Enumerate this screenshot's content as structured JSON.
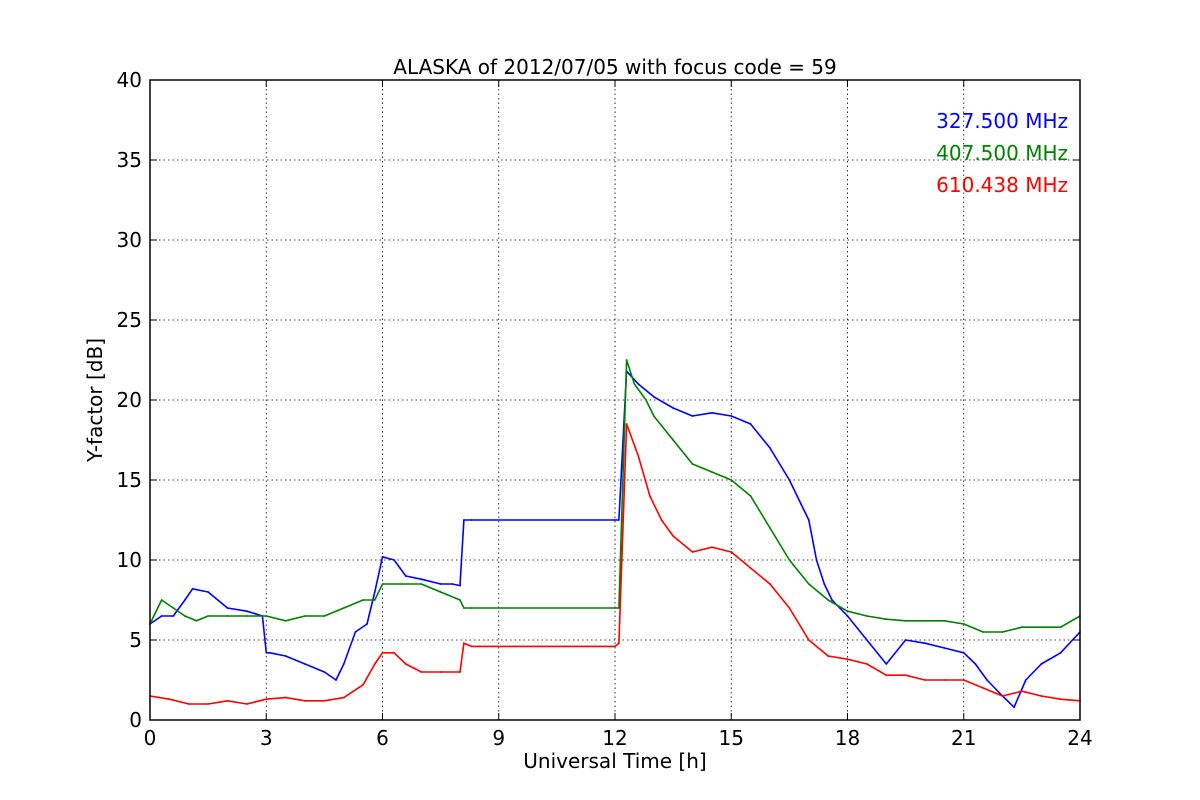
{
  "chart_data": {
    "type": "line",
    "title": "ALASKA of 2012/07/05 with focus code = 59",
    "xlabel": "Universal Time [h]",
    "ylabel": "Y-factor [dB]",
    "xlim": [
      0,
      24
    ],
    "ylim": [
      0,
      40
    ],
    "xticks": [
      0,
      3,
      6,
      9,
      12,
      15,
      18,
      21,
      24
    ],
    "yticks": [
      0,
      5,
      10,
      15,
      20,
      25,
      30,
      35,
      40
    ],
    "grid": true,
    "legend_position": "top-right",
    "series": [
      {
        "name": "327.500 MHz",
        "color": "#0000ff",
        "x": [
          0,
          0.3,
          0.6,
          0.9,
          1.1,
          1.5,
          2.0,
          2.5,
          2.9,
          3.0,
          3.1,
          3.5,
          4.0,
          4.5,
          4.8,
          5.0,
          5.3,
          5.6,
          5.8,
          6.0,
          6.3,
          6.6,
          7.0,
          7.5,
          7.8,
          8.0,
          8.1,
          8.3,
          12.0,
          12.1,
          12.3,
          12.6,
          13.0,
          13.5,
          14.0,
          14.5,
          15.0,
          15.5,
          16.0,
          16.5,
          16.8,
          17.0,
          17.2,
          17.4,
          17.6,
          17.8,
          18.0,
          18.5,
          19.0,
          19.5,
          20.0,
          20.5,
          21.0,
          21.3,
          21.6,
          22.0,
          22.3,
          22.6,
          23.0,
          23.5,
          24.0
        ],
        "y": [
          6.0,
          6.5,
          6.5,
          7.5,
          8.2,
          8.0,
          7.0,
          6.8,
          6.5,
          4.2,
          4.2,
          4.0,
          3.5,
          3.0,
          2.5,
          3.5,
          5.5,
          6.0,
          8.0,
          10.2,
          10.0,
          9.0,
          8.8,
          8.5,
          8.5,
          8.4,
          12.5,
          12.5,
          12.5,
          12.5,
          21.8,
          21.0,
          20.2,
          19.5,
          19.0,
          19.2,
          19.0,
          18.5,
          17.0,
          15.0,
          13.5,
          12.5,
          10.0,
          8.5,
          7.5,
          7.0,
          6.5,
          5.0,
          3.5,
          5.0,
          4.8,
          4.5,
          4.2,
          3.5,
          2.5,
          1.5,
          0.8,
          2.5,
          3.5,
          4.2,
          5.5
        ]
      },
      {
        "name": "407.500 MHz",
        "color": "#008000",
        "x": [
          0,
          0.3,
          0.6,
          0.9,
          1.2,
          1.5,
          2.0,
          2.5,
          3.0,
          3.5,
          4.0,
          4.5,
          5.0,
          5.5,
          5.8,
          6.0,
          6.5,
          7.0,
          7.5,
          8.0,
          8.1,
          8.3,
          12.0,
          12.1,
          12.3,
          12.5,
          12.8,
          13.0,
          13.5,
          14.0,
          14.5,
          15.0,
          15.5,
          16.0,
          16.5,
          17.0,
          17.5,
          18.0,
          18.5,
          19.0,
          19.5,
          20.0,
          20.5,
          21.0,
          21.5,
          22.0,
          22.5,
          23.0,
          23.5,
          24.0
        ],
        "y": [
          6.0,
          7.5,
          7.0,
          6.5,
          6.2,
          6.5,
          6.5,
          6.5,
          6.5,
          6.2,
          6.5,
          6.5,
          7.0,
          7.5,
          7.5,
          8.5,
          8.5,
          8.5,
          8.0,
          7.5,
          7.0,
          7.0,
          7.0,
          7.0,
          22.5,
          21.0,
          20.0,
          19.0,
          17.5,
          16.0,
          15.5,
          15.0,
          14.0,
          12.0,
          10.0,
          8.5,
          7.5,
          6.8,
          6.5,
          6.3,
          6.2,
          6.2,
          6.2,
          6.0,
          5.5,
          5.5,
          5.8,
          5.8,
          5.8,
          6.5
        ]
      },
      {
        "name": "610.438 MHz",
        "color": "#ff0000",
        "x": [
          0,
          0.5,
          1.0,
          1.5,
          2.0,
          2.5,
          3.0,
          3.5,
          4.0,
          4.5,
          5.0,
          5.5,
          5.8,
          6.0,
          6.3,
          6.6,
          7.0,
          7.5,
          8.0,
          8.1,
          8.3,
          12.0,
          12.1,
          12.3,
          12.6,
          12.9,
          13.2,
          13.5,
          14.0,
          14.5,
          15.0,
          15.5,
          16.0,
          16.5,
          17.0,
          17.5,
          18.0,
          18.5,
          19.0,
          19.5,
          20.0,
          20.5,
          21.0,
          21.5,
          22.0,
          22.5,
          23.0,
          23.5,
          24.0
        ],
        "y": [
          1.5,
          1.3,
          1.0,
          1.0,
          1.2,
          1.0,
          1.3,
          1.4,
          1.2,
          1.2,
          1.4,
          2.2,
          3.5,
          4.2,
          4.2,
          3.5,
          3.0,
          3.0,
          3.0,
          4.8,
          4.6,
          4.6,
          4.8,
          18.5,
          16.5,
          14.0,
          12.5,
          11.5,
          10.5,
          10.8,
          10.5,
          9.5,
          8.5,
          7.0,
          5.0,
          4.0,
          3.8,
          3.5,
          2.8,
          2.8,
          2.5,
          2.5,
          2.5,
          2.0,
          1.5,
          1.8,
          1.5,
          1.3,
          1.2
        ]
      }
    ]
  }
}
